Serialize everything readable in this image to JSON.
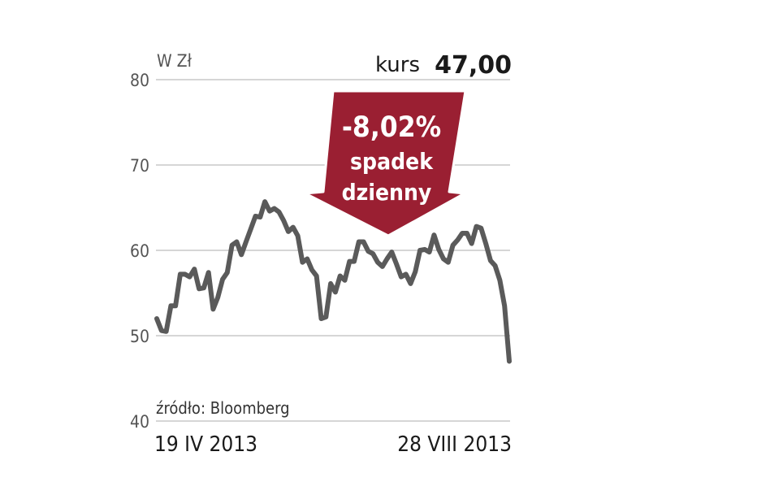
{
  "chart_data": {
    "type": "line",
    "unit_label": "W Zł",
    "kurs_label": "kurs",
    "kurs_value": "47,00",
    "annotation": {
      "change": "-8,02%",
      "line1": "spadek",
      "line2": "dzienny"
    },
    "source": "źródło: Bloomberg",
    "start_label": "19 IV 2013",
    "end_label": "28 VIII 2013",
    "ylim": [
      40,
      80
    ],
    "yticks": [
      80,
      70,
      60,
      50,
      40
    ],
    "grid": true,
    "series": [
      {
        "color": "#5a5a5a",
        "values": [
          52,
          50.6,
          50.5,
          53.5,
          53.5,
          57.2,
          57.2,
          56.9,
          57.8,
          55.5,
          55.6,
          57.4,
          53.1,
          54.5,
          56.6,
          57.4,
          60.6,
          61.0,
          59.5,
          61.0,
          62.5,
          64.0,
          63.9,
          65.7,
          64.6,
          64.9,
          64.5,
          63.5,
          62.2,
          62.7,
          61.7,
          58.6,
          59.0,
          57.7,
          57.0,
          52.0,
          52.2,
          56.1,
          55.1,
          57.0,
          56.5,
          58.7,
          58.7,
          61.0,
          61.0,
          59.9,
          59.6,
          58.6,
          58.1,
          59.0,
          59.8,
          58.4,
          56.9,
          57.2,
          56.1,
          57.5,
          60.0,
          60.1,
          59.8,
          61.8,
          60.1,
          59.0,
          58.6,
          60.6,
          61.2,
          62.0,
          62.0,
          60.8,
          62.8,
          62.6,
          60.8,
          58.8,
          58.2,
          56.5,
          53.5,
          47.0
        ]
      }
    ]
  }
}
